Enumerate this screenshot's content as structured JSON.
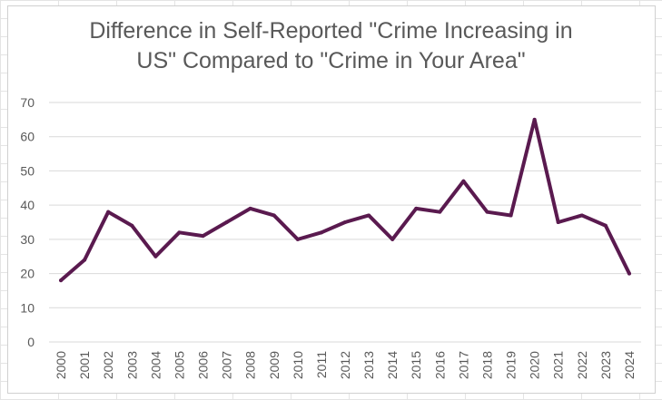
{
  "chart_data": {
    "type": "line",
    "title_line1": "Difference in Self-Reported \"Crime Increasing in",
    "title_line2": "US\" Compared to \"Crime in Your Area\"",
    "xlabel": "",
    "ylabel": "",
    "categories": [
      "2000",
      "2001",
      "2002",
      "2003",
      "2004",
      "2005",
      "2006",
      "2007",
      "2008",
      "2009",
      "2010",
      "2011",
      "2012",
      "2013",
      "2014",
      "2015",
      "2016",
      "2017",
      "2018",
      "2019",
      "2020",
      "2021",
      "2022",
      "2023",
      "2024"
    ],
    "series": [
      {
        "values": [
          18,
          24,
          38,
          34,
          25,
          32,
          31,
          35,
          39,
          37,
          30,
          32,
          35,
          37,
          30,
          39,
          38,
          47,
          38,
          37,
          65,
          35,
          37,
          34,
          20
        ]
      }
    ],
    "ylim": [
      0,
      70
    ],
    "yticks": [
      0,
      10,
      20,
      30,
      40,
      50,
      60,
      70
    ],
    "grid": true,
    "legend": "none",
    "line_color": "#5a1a4f",
    "grid_color": "#d9d9d9",
    "text_color": "#595959"
  }
}
